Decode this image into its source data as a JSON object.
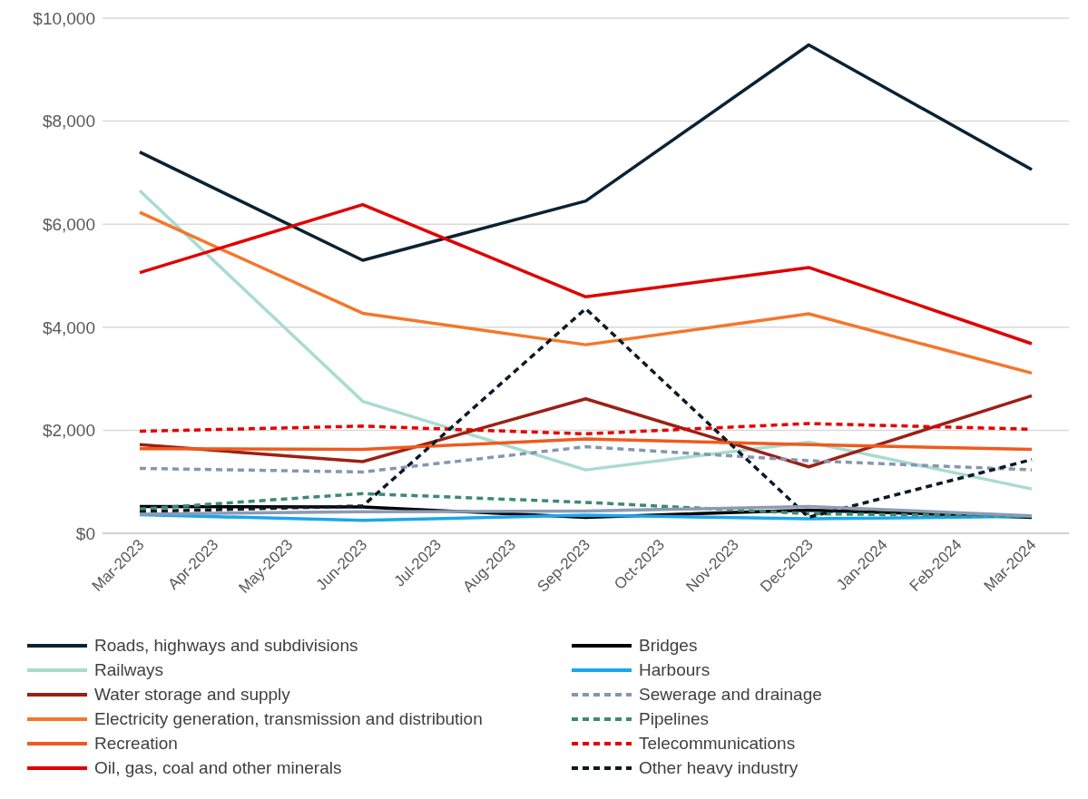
{
  "chart_data": {
    "type": "line",
    "categories": [
      "Mar-2023",
      "Apr-2023",
      "May-2023",
      "Jun-2023",
      "Jul-2023",
      "Aug-2023",
      "Sep-2023",
      "Oct-2023",
      "Nov-2023",
      "Dec-2023",
      "Jan-2024",
      "Feb-2024",
      "Mar-2024"
    ],
    "ylim": [
      0,
      10000
    ],
    "yticks": [
      {
        "value": 0,
        "label": "$0"
      },
      {
        "value": 2000,
        "label": "$2,000"
      },
      {
        "value": 4000,
        "label": "$4,000"
      },
      {
        "value": 6000,
        "label": "$6,000"
      },
      {
        "value": 8000,
        "label": "$8,000"
      },
      {
        "value": 10000,
        "label": "$10,000"
      }
    ],
    "grid": "y",
    "legend": "bottom",
    "marker": "none",
    "series": [
      {
        "name": "Roads, highways and subdivisions",
        "color": "#0b2233",
        "line_style": "solid",
        "values": [
          7400,
          null,
          null,
          5300,
          null,
          null,
          6450,
          null,
          null,
          9480,
          null,
          null,
          7060
        ]
      },
      {
        "name": "Bridges",
        "color": "#000000",
        "line_style": "solid",
        "values": [
          520,
          null,
          null,
          510,
          null,
          null,
          310,
          null,
          null,
          450,
          null,
          null,
          310
        ]
      },
      {
        "name": "Railways",
        "color": "#a8dccf",
        "line_style": "solid",
        "values": [
          6650,
          null,
          null,
          2560,
          null,
          null,
          1230,
          null,
          null,
          1770,
          null,
          null,
          860
        ]
      },
      {
        "name": "Harbours",
        "color": "#1aa7ec",
        "line_style": "solid",
        "values": [
          360,
          null,
          null,
          250,
          null,
          null,
          350,
          null,
          null,
          280,
          null,
          null,
          330
        ]
      },
      {
        "name": "Water storage and supply",
        "color": "#9b2115",
        "line_style": "solid",
        "values": [
          1720,
          null,
          null,
          1390,
          null,
          null,
          2610,
          null,
          null,
          1290,
          null,
          null,
          2670
        ]
      },
      {
        "name": "Sewerage and drainage",
        "color": "#8497b0",
        "line_style": "dashed",
        "values": [
          1260,
          null,
          null,
          1190,
          null,
          null,
          1680,
          null,
          null,
          1410,
          null,
          null,
          1230
        ]
      },
      {
        "name": "Electricity generation, transmission and distribution",
        "color": "#f4772a",
        "line_style": "solid",
        "values": [
          6230,
          null,
          null,
          4270,
          null,
          null,
          3660,
          null,
          null,
          4260,
          null,
          null,
          3110
        ]
      },
      {
        "name": "Pipelines",
        "color": "#3b8a74",
        "line_style": "dashed",
        "values": [
          470,
          null,
          null,
          770,
          null,
          null,
          600,
          null,
          null,
          380,
          null,
          null,
          330
        ]
      },
      {
        "name": "Recreation",
        "color": "#f05a1e",
        "line_style": "solid",
        "values": [
          1640,
          null,
          null,
          1630,
          null,
          null,
          1830,
          null,
          null,
          1720,
          null,
          null,
          1630
        ]
      },
      {
        "name": "Telecommunications",
        "color": "#e60000",
        "line_style": "dashed",
        "values": [
          1980,
          null,
          null,
          2080,
          null,
          null,
          1930,
          null,
          null,
          2130,
          null,
          null,
          2020
        ]
      },
      {
        "name": "Oil, gas, coal and other minerals",
        "color": "#e00000",
        "line_style": "solid",
        "values": [
          5060,
          null,
          null,
          6380,
          null,
          null,
          4590,
          null,
          null,
          5160,
          null,
          null,
          3680
        ]
      },
      {
        "name": "Other heavy industry",
        "color": "#0b1a28",
        "line_style": "dashed",
        "values": [
          420,
          null,
          null,
          530,
          null,
          null,
          4360,
          null,
          null,
          310,
          null,
          null,
          1430
        ]
      },
      {
        "color": "#8c9bb5",
        "line_style": "solid",
        "values": [
          370,
          null,
          null,
          420,
          null,
          null,
          430,
          null,
          null,
          520,
          null,
          null,
          340
        ]
      }
    ]
  }
}
